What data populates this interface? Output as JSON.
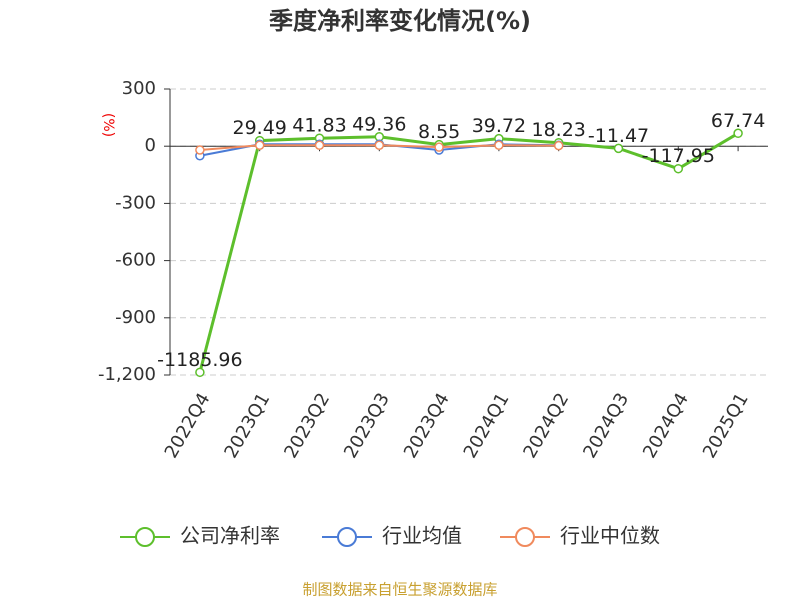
{
  "chart_data": {
    "type": "line",
    "title": "季度净利率变化情况(%)",
    "y_label": "(%)",
    "categories": [
      "2022Q4",
      "2023Q1",
      "2023Q2",
      "2023Q3",
      "2023Q4",
      "2024Q1",
      "2024Q2",
      "2024Q3",
      "2024Q4",
      "2025Q1"
    ],
    "series": [
      {
        "name": "公司净利率",
        "color": "#5dbf2c",
        "values": [
          -1185.96,
          29.49,
          41.83,
          49.36,
          8.55,
          39.72,
          18.23,
          -11.47,
          -117.95,
          67.74
        ],
        "show_labels": true
      },
      {
        "name": "行业均值",
        "color": "#4a7bd6",
        "values": [
          -50,
          10,
          10,
          10,
          -20,
          10,
          5,
          null,
          null,
          null
        ]
      },
      {
        "name": "行业中位数",
        "color": "#f08a5d",
        "values": [
          -20,
          5,
          5,
          5,
          -5,
          5,
          3,
          null,
          null,
          null
        ]
      }
    ],
    "ylim": [
      -1200,
      300
    ],
    "yticks": [
      300,
      0,
      -300,
      -600,
      -900,
      {
        "value": -1200,
        "label": "-1,200"
      }
    ],
    "grid": true,
    "source": "制图数据来自恒生聚源数据库"
  }
}
